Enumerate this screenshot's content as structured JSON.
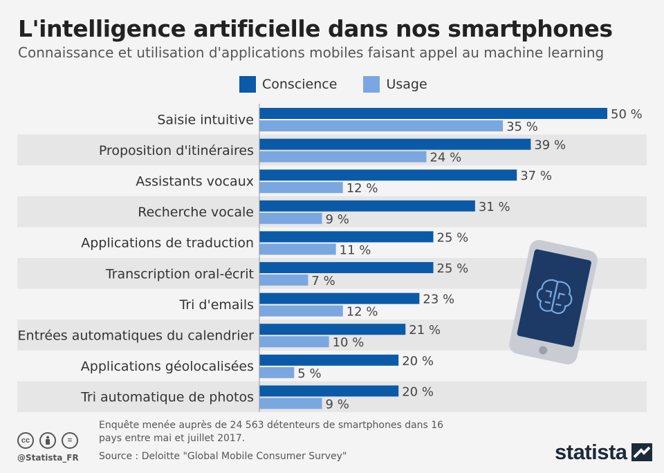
{
  "title": "L'intelligence artificielle dans nos smartphones",
  "subtitle": "Connaissance et utilisation d'applications mobiles faisant appel au machine learning",
  "legend": [
    {
      "label": "Conscience",
      "color": "#0b5aa8"
    },
    {
      "label": "Usage",
      "color": "#7ba7e0"
    }
  ],
  "chart_data": {
    "type": "bar",
    "orientation": "horizontal",
    "categories": [
      "Saisie intuitive",
      "Proposition d'itinéraires",
      "Assistants vocaux",
      "Recherche vocale",
      "Applications de traduction",
      "Transcription oral-écrit",
      "Tri d'emails",
      "Entrées automatiques du calendrier",
      "Applications géolocalisées",
      "Tri automatique de photos"
    ],
    "series": [
      {
        "name": "Conscience",
        "color": "#0b5aa8",
        "values": [
          50,
          39,
          37,
          31,
          25,
          25,
          23,
          21,
          20,
          20
        ]
      },
      {
        "name": "Usage",
        "color": "#7ba7e0",
        "values": [
          35,
          24,
          12,
          9,
          11,
          7,
          12,
          10,
          5,
          9
        ]
      }
    ],
    "value_suffix": " %",
    "xlim": [
      0,
      50
    ],
    "title": "L'intelligence artificielle dans nos smartphones",
    "subtitle": "Connaissance et utilisation d'applications mobiles faisant appel au machine learning"
  },
  "footer": {
    "note": "Enquête menée auprès de 24 563 détenteurs de smartphones dans 16 pays entre mai et juillet 2017.",
    "source": "Source : Deloitte \"Global Mobile Consumer Survey\"",
    "handle": "@Statista_FR",
    "brand": "statista",
    "cc_icons": [
      "cc",
      "by",
      "="
    ]
  },
  "illustration": {
    "icon": "smartphone-brain-icon"
  }
}
